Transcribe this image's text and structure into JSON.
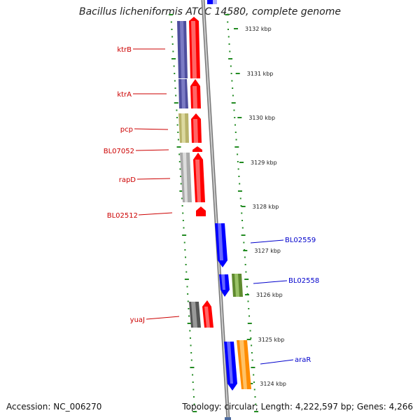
{
  "title": "Bacillus licheniformis ATCC 14580, complete genome",
  "footer": {
    "accession": "Accession: NC_006270",
    "stats": "Topology: circular; Length: 4,222,597 bp; Genes: 4,266"
  },
  "ticks": [
    "3132 kbp",
    "3131 kbp",
    "3130 kbp",
    "3129 kbp",
    "3128 kbp",
    "3127 kbp",
    "3126 kbp",
    "3125 kbp",
    "3124 kbp"
  ],
  "genes": [
    {
      "label": "ktrB",
      "strand": "reverse",
      "color": "#cc0000"
    },
    {
      "label": "ktrA",
      "strand": "reverse",
      "color": "#cc0000"
    },
    {
      "label": "pcp",
      "strand": "reverse",
      "color": "#cc0000"
    },
    {
      "label": "BL07052",
      "strand": "reverse",
      "color": "#cc0000"
    },
    {
      "label": "rapD",
      "strand": "reverse",
      "color": "#cc0000"
    },
    {
      "label": "BL02512",
      "strand": "reverse",
      "color": "#cc0000"
    },
    {
      "label": "BL02559",
      "strand": "forward",
      "color": "#0000cc"
    },
    {
      "label": "BL02558",
      "strand": "forward",
      "color": "#0000cc"
    },
    {
      "label": "yuaJ",
      "strand": "reverse",
      "color": "#cc0000"
    },
    {
      "label": "araR",
      "strand": "forward",
      "color": "#0000cc"
    }
  ],
  "colors": {
    "reverse_cds": "#ff0000",
    "forward_cds": "#0000ff",
    "backbone": "#888888",
    "gc_dots": "#228B22"
  }
}
